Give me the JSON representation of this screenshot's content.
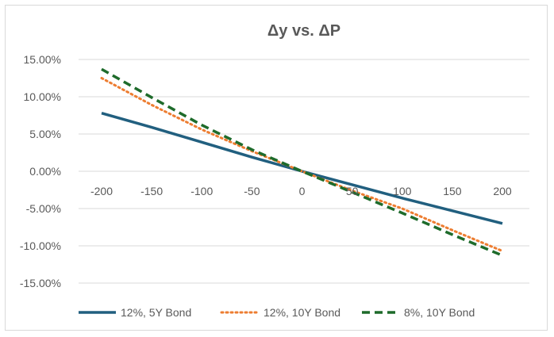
{
  "chart_data": {
    "type": "line",
    "title": "Δy vs. ΔP",
    "x": [
      -200,
      -150,
      -100,
      -50,
      0,
      50,
      100,
      150,
      200
    ],
    "x_tick_labels": [
      "-200",
      "-150",
      "-100",
      "-50",
      "0",
      "50",
      "100",
      "150",
      "200"
    ],
    "y_tick_labels": [
      "15.00%",
      "10.00%",
      "5.00%",
      "0.00%",
      "-5.00%",
      "-10.00%",
      "-15.00%"
    ],
    "y_ticks": [
      15,
      10,
      5,
      0,
      -5,
      -10,
      -15
    ],
    "ylim": [
      -15,
      15
    ],
    "y_unit": "%",
    "grid": "horizontal",
    "legend_position": "bottom",
    "series": [
      {
        "name": "12%, 5Y Bond",
        "color": "#215f7f",
        "style": "solid",
        "values": [
          7.8,
          5.9,
          3.9,
          1.9,
          0.0,
          -1.8,
          -3.6,
          -5.3,
          -7.0
        ]
      },
      {
        "name": "12%, 10Y Bond",
        "color": "#ed7d31",
        "style": "dotted",
        "values": [
          12.5,
          8.9,
          5.6,
          2.7,
          0.0,
          -2.6,
          -5.0,
          -7.9,
          -10.7
        ]
      },
      {
        "name": "8%, 10Y Bond",
        "color": "#1e6b2b",
        "style": "dashed",
        "values": [
          13.7,
          9.9,
          6.2,
          2.9,
          0.0,
          -2.8,
          -5.6,
          -8.5,
          -11.3
        ]
      }
    ]
  }
}
